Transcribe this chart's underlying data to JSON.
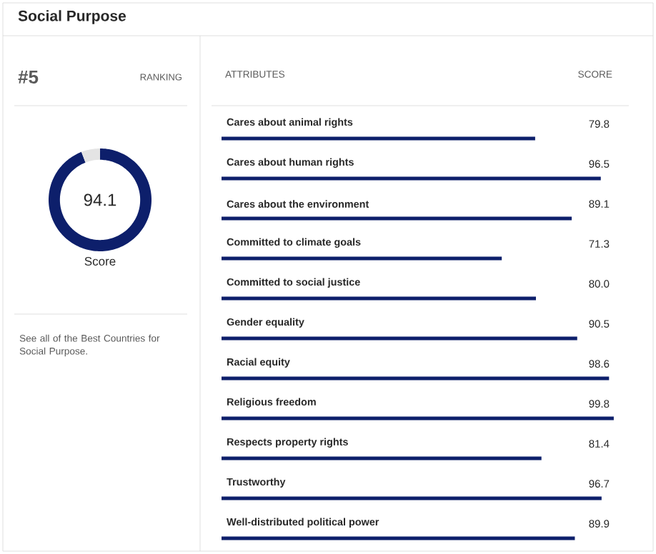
{
  "chart_data": [
    {
      "type": "donut",
      "title": "Social Purpose",
      "categories": [
        null,
        null
      ],
      "values": [
        94.1,
        5.9
      ],
      "colors": [
        "#0d1f6b",
        "#e4e4e4"
      ],
      "value_labels": [
        "94.1",
        null
      ],
      "annotations": [
        "#5",
        "RANKING",
        "Score",
        "See all of the Best Countries for Social Purpose."
      ]
    },
    {
      "type": "bar",
      "orientation": "horizontal",
      "categories": [
        "Cares about animal rights",
        "Cares about human rights",
        "Cares about the environment",
        "Committed to climate goals",
        "Committed to social justice",
        "Gender equality",
        "Racial equity",
        "Religious freedom",
        "Respects property rights",
        "Trustworthy",
        "Well-distributed political power"
      ],
      "values": [
        79.8,
        96.5,
        89.1,
        71.3,
        80.0,
        90.5,
        98.6,
        99.8,
        81.4,
        96.7,
        89.9
      ],
      "value_labels": [
        "79.8",
        "96.5",
        "89.1",
        "71.3",
        "80.0",
        "90.5",
        "98.6",
        "99.8",
        "81.4",
        "96.7",
        "89.9"
      ],
      "color": "#0d1f6b",
      "xlim": [
        0,
        100
      ],
      "tick_labels": false,
      "annotations": [
        "ATTRIBUTES",
        "SCORE"
      ]
    }
  ]
}
